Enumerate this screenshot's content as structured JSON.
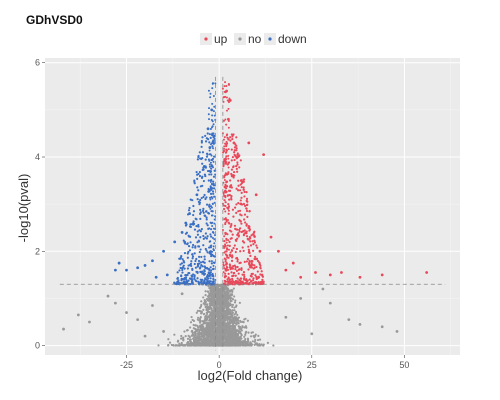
{
  "chart_data": {
    "type": "scatter",
    "title": "GDhVSD0",
    "xlabel": "log2(Fold change)",
    "ylabel": "-log10(pval)",
    "xlim": [
      -47,
      65
    ],
    "ylim": [
      -0.2,
      6.1
    ],
    "x_ticks": [
      -25,
      0,
      25,
      50
    ],
    "y_ticks": [
      0,
      2,
      4,
      6
    ],
    "grid": true,
    "background": "#ebebeb",
    "legend": {
      "position": "top",
      "entries": [
        {
          "label": "up",
          "color": "#e8485a"
        },
        {
          "label": "no",
          "color": "#999999"
        },
        {
          "label": "down",
          "color": "#3a6fc4"
        }
      ]
    },
    "thresholds": {
      "pval_line_y": 1.3,
      "fc_lines_x": [
        -1,
        1
      ]
    },
    "series": [
      {
        "name": "up",
        "color": "#e8485a",
        "points": [
          [
            2,
            5.4
          ],
          [
            3,
            5.2
          ],
          [
            2.5,
            4.8
          ],
          [
            4,
            4.3
          ],
          [
            8,
            4.3
          ],
          [
            12,
            4.05
          ],
          [
            5,
            4.0
          ],
          [
            3.5,
            3.6
          ],
          [
            6,
            3.5
          ],
          [
            10,
            3.2
          ],
          [
            14,
            2.3
          ],
          [
            16,
            2.0
          ],
          [
            20,
            1.75
          ],
          [
            26,
            1.55
          ],
          [
            30,
            1.5
          ],
          [
            33,
            1.55
          ],
          [
            38,
            1.45
          ],
          [
            44,
            1.5
          ],
          [
            56,
            1.55
          ],
          [
            8,
            2.5
          ],
          [
            11,
            2.0
          ],
          [
            18,
            1.6
          ],
          [
            22,
            1.45
          ]
        ]
      },
      {
        "name": "down",
        "color": "#3a6fc4",
        "points": [
          [
            -2,
            5.0
          ],
          [
            -3,
            4.6
          ],
          [
            -2.5,
            4.2
          ],
          [
            -4,
            3.8
          ],
          [
            -6,
            3.2
          ],
          [
            -8,
            2.8
          ],
          [
            -10,
            2.4
          ],
          [
            -12,
            2.2
          ],
          [
            -15,
            2.0
          ],
          [
            -18,
            1.8
          ],
          [
            -20,
            1.7
          ],
          [
            -22,
            1.65
          ],
          [
            -25,
            1.6
          ],
          [
            -27,
            1.75
          ],
          [
            -28,
            1.6
          ],
          [
            -14,
            1.5
          ],
          [
            -17,
            1.45
          ],
          [
            -9,
            2.6
          ]
        ]
      },
      {
        "name": "no",
        "color": "#999999",
        "points": [
          [
            -42,
            0.35
          ],
          [
            -38,
            0.65
          ],
          [
            -35,
            0.5
          ],
          [
            -30,
            1.05
          ],
          [
            -28,
            0.9
          ],
          [
            -25,
            0.7
          ],
          [
            -22,
            0.55
          ],
          [
            -18,
            0.85
          ],
          [
            -15,
            0.3
          ],
          [
            -10,
            1.1
          ],
          [
            30,
            0.9
          ],
          [
            35,
            0.55
          ],
          [
            38,
            0.45
          ],
          [
            44,
            0.4
          ],
          [
            48,
            0.3
          ],
          [
            28,
            1.2
          ],
          [
            22,
            1.0
          ],
          [
            18,
            0.6
          ],
          [
            -20,
            0.2
          ],
          [
            25,
            0.25
          ]
        ]
      }
    ]
  }
}
